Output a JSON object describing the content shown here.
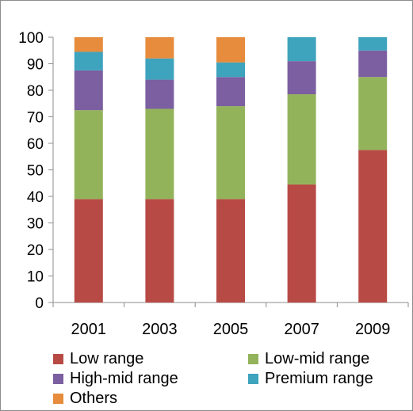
{
  "chart_data": {
    "type": "bar",
    "stacked": true,
    "categories": [
      "2001",
      "2003",
      "2005",
      "2007",
      "2009"
    ],
    "series": [
      {
        "name": "Low range",
        "color": "#b84a45",
        "values": [
          39,
          39,
          39,
          44.5,
          57.5
        ]
      },
      {
        "name": "Low-mid range",
        "color": "#93b35b",
        "values": [
          33.5,
          34,
          35,
          34,
          27.5
        ]
      },
      {
        "name": "High-mid range",
        "color": "#7b5fa0",
        "values": [
          15,
          11,
          11,
          12.5,
          10
        ]
      },
      {
        "name": "Premium range",
        "color": "#3ea3bd",
        "values": [
          7,
          8,
          5.5,
          9,
          5
        ]
      },
      {
        "name": "Others",
        "color": "#e68c3c",
        "values": [
          5.5,
          8,
          9.5,
          0,
          0
        ]
      }
    ],
    "yticks": [
      "0",
      "10",
      "20",
      "30",
      "40",
      "50",
      "60",
      "70",
      "80",
      "90",
      "100"
    ],
    "ylim": [
      0,
      100
    ],
    "grid": false,
    "legend_position": "bottom"
  }
}
